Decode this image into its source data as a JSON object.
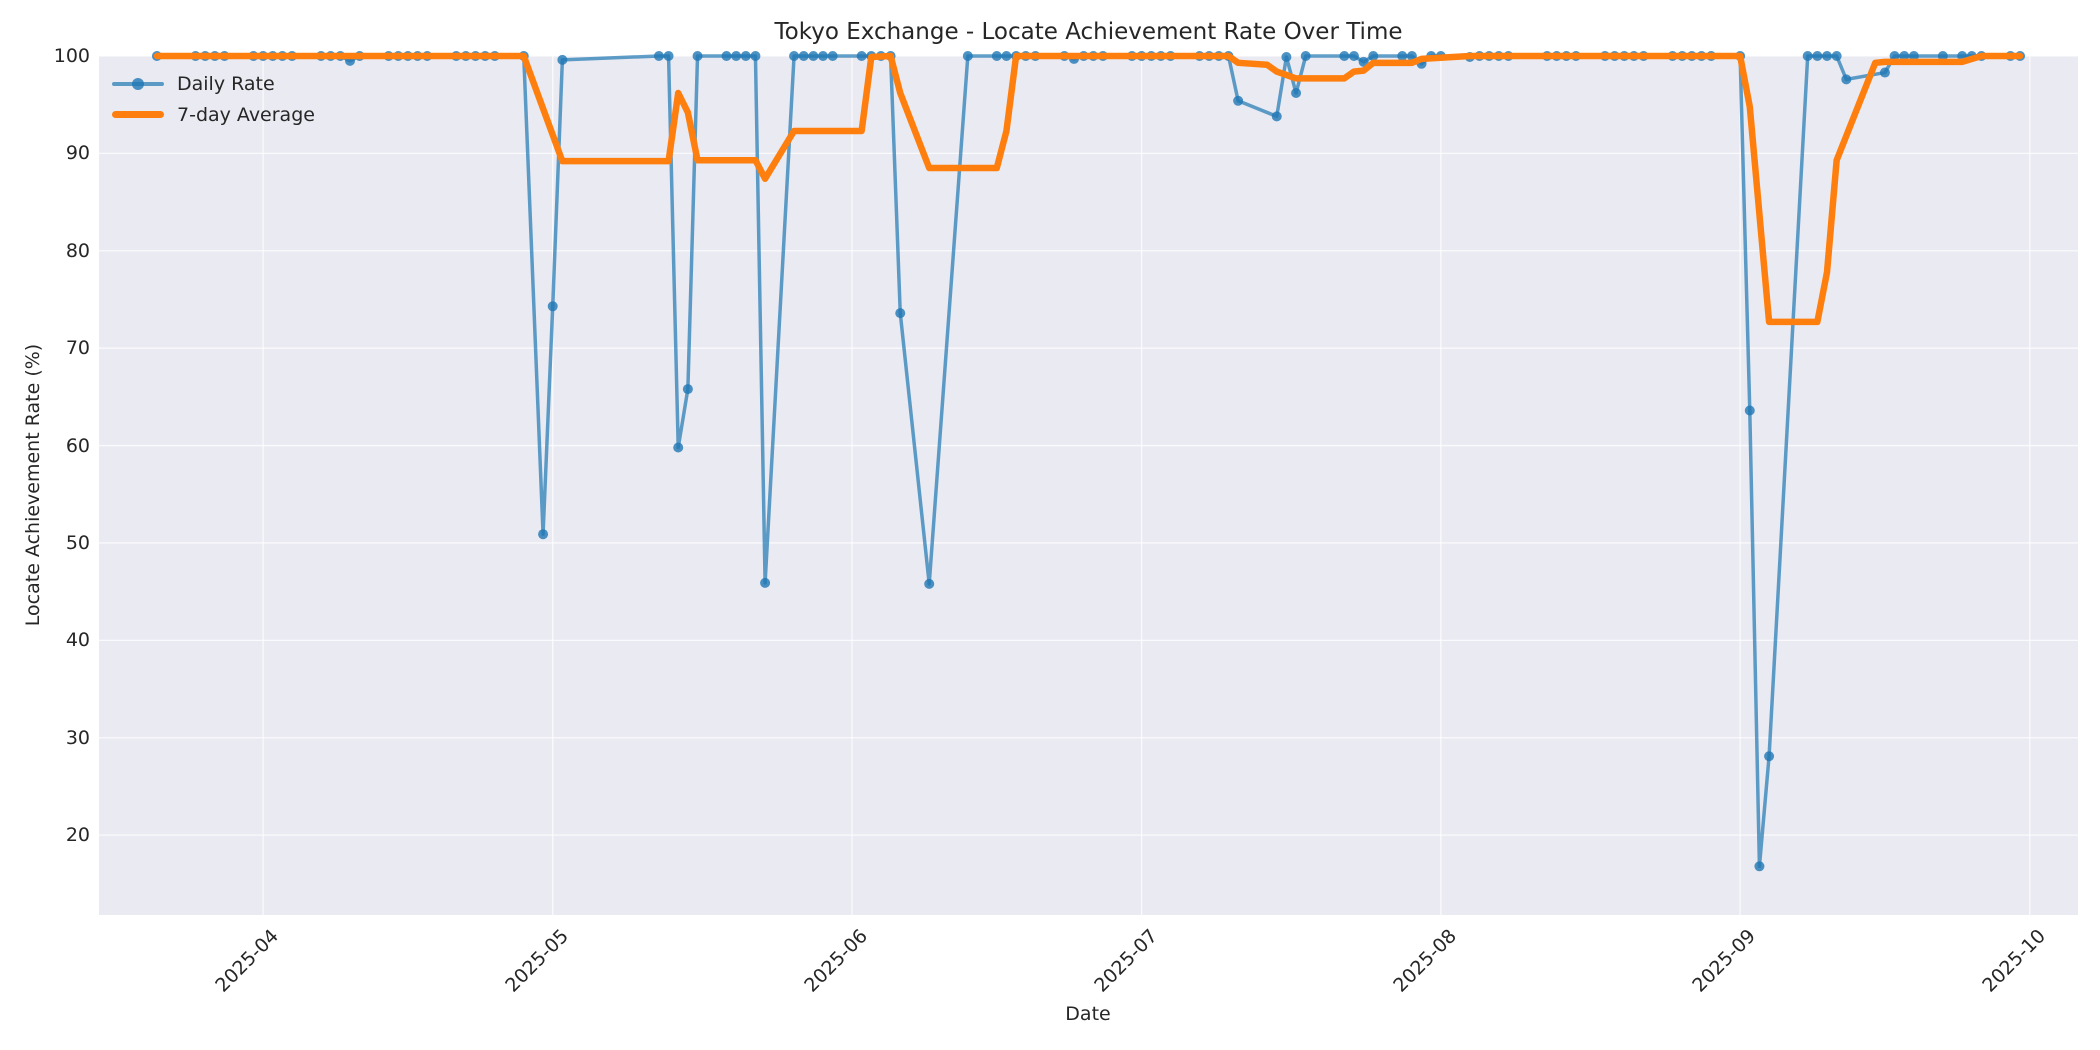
{
  "chart_data": {
    "type": "line",
    "title": "Tokyo Exchange - Locate Achievement Rate Over Time",
    "xlabel": "Date",
    "ylabel": "Locate Achievement Rate (%)",
    "ylim": [
      11.8,
      100
    ],
    "xlim": [
      "2025-03-15",
      "2025-10-06"
    ],
    "grid": true,
    "legend_position": "upper left",
    "y_ticks": [
      20,
      30,
      40,
      50,
      60,
      70,
      80,
      90,
      100
    ],
    "x_ticks": [
      "2025-04",
      "2025-05",
      "2025-06",
      "2025-07",
      "2025-08",
      "2025-09",
      "2025-10"
    ],
    "x_tick_dates": [
      "2025-04-01",
      "2025-05-01",
      "2025-06-01",
      "2025-07-01",
      "2025-08-01",
      "2025-09-01",
      "2025-10-01"
    ],
    "series": [
      {
        "name": "Daily Rate",
        "color": "#1f77b4",
        "style": "line-with-markers",
        "note": "Business days; value 100 except listed exceptions",
        "start": "2025-03-21",
        "end": "2025-09-30",
        "default_value": 100,
        "missing_dates": [
          "2025-03-24",
          "2025-04-29",
          "2025-05-05",
          "2025-05-06",
          "2025-05-07",
          "2025-05-08",
          "2025-05-09",
          "2025-06-10",
          "2025-06-11",
          "2025-06-12",
          "2025-07-14",
          "2025-07-21",
          "2025-08-11",
          "2025-09-05",
          "2025-09-15",
          "2025-09-23"
        ],
        "exceptions": {
          "2025-04-10": 99.5,
          "2025-04-30": 50.9,
          "2025-05-01": 74.3,
          "2025-05-02": 99.6,
          "2025-05-14": 59.8,
          "2025-05-15": 65.8,
          "2025-05-23": 45.9,
          "2025-06-06": 73.6,
          "2025-06-09": 45.8,
          "2025-06-24": 99.7,
          "2025-07-11": 95.4,
          "2025-07-15": 93.8,
          "2025-07-16": 99.9,
          "2025-07-17": 96.2,
          "2025-07-24": 99.4,
          "2025-07-30": 99.2,
          "2025-08-04": 99.9,
          "2025-09-02": 63.6,
          "2025-09-03": 16.8,
          "2025-09-04": 28.1,
          "2025-09-12": 97.6,
          "2025-09-16": 98.3
        }
      },
      {
        "name": "7-day Average",
        "color": "#ff7f0e",
        "style": "thick-line",
        "points": [
          [
            "2025-03-21",
            100
          ],
          [
            "2025-04-28",
            100
          ],
          [
            "2025-05-02",
            89.2
          ],
          [
            "2025-05-13",
            89.2
          ],
          [
            "2025-05-14",
            96.2
          ],
          [
            "2025-05-15",
            94.2
          ],
          [
            "2025-05-16",
            89.3
          ],
          [
            "2025-05-22",
            89.3
          ],
          [
            "2025-05-23",
            87.4
          ],
          [
            "2025-05-26",
            92.3
          ],
          [
            "2025-06-02",
            92.3
          ],
          [
            "2025-06-03",
            99.9
          ],
          [
            "2025-06-05",
            100
          ],
          [
            "2025-06-06",
            96.2
          ],
          [
            "2025-06-09",
            88.5
          ],
          [
            "2025-06-16",
            88.5
          ],
          [
            "2025-06-17",
            92.3
          ],
          [
            "2025-06-18",
            100
          ],
          [
            "2025-07-10",
            100
          ],
          [
            "2025-07-11",
            99.3
          ],
          [
            "2025-07-14",
            99.1
          ],
          [
            "2025-07-15",
            98.4
          ],
          [
            "2025-07-17",
            97.7
          ],
          [
            "2025-07-22",
            97.7
          ],
          [
            "2025-07-23",
            98.4
          ],
          [
            "2025-07-24",
            98.5
          ],
          [
            "2025-07-25",
            99.3
          ],
          [
            "2025-07-29",
            99.3
          ],
          [
            "2025-07-30",
            99.7
          ],
          [
            "2025-08-04",
            100
          ],
          [
            "2025-09-01",
            100
          ],
          [
            "2025-09-02",
            94.8
          ],
          [
            "2025-09-04",
            72.7
          ],
          [
            "2025-09-09",
            72.7
          ],
          [
            "2025-09-10",
            77.8
          ],
          [
            "2025-09-11",
            89.3
          ],
          [
            "2025-09-15",
            99.3
          ],
          [
            "2025-09-16",
            99.4
          ],
          [
            "2025-09-24",
            99.4
          ],
          [
            "2025-09-26",
            100
          ],
          [
            "2025-09-30",
            100
          ]
        ]
      }
    ]
  },
  "legend": {
    "daily_label": "Daily Rate",
    "avg_label": "7-day Average"
  },
  "colors": {
    "plot_background": "#eaeaf2",
    "grid": "#ffffff",
    "daily": "#1f77b4",
    "average": "#ff7f0e"
  }
}
